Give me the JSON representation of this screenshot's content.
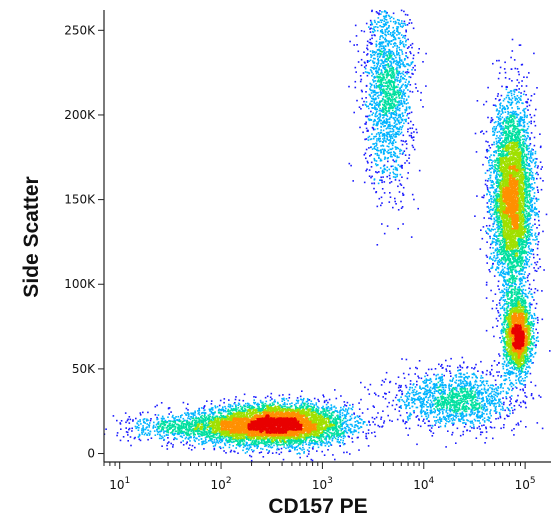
{
  "chart_data": {
    "type": "scatter",
    "subtype": "flow cytometry density dot plot",
    "xlabel": "CD157 PE",
    "ylabel": "Side Scatter",
    "x_scale": "log",
    "xlim": [
      7,
      180000
    ],
    "ylim": [
      -5000,
      262000
    ],
    "x_ticks": [
      {
        "value": 10,
        "label_base": "10",
        "label_exp": "1"
      },
      {
        "value": 100,
        "label_base": "10",
        "label_exp": "2"
      },
      {
        "value": 1000,
        "label_base": "10",
        "label_exp": "3"
      },
      {
        "value": 10000,
        "label_base": "10",
        "label_exp": "4"
      },
      {
        "value": 100000,
        "label_base": "10",
        "label_exp": "5"
      }
    ],
    "y_ticks": [
      {
        "value": 0,
        "label": "0"
      },
      {
        "value": 50000,
        "label": "50K"
      },
      {
        "value": 100000,
        "label": "100K"
      },
      {
        "value": 150000,
        "label": "150K"
      },
      {
        "value": 200000,
        "label": "200K"
      },
      {
        "value": 250000,
        "label": "250K"
      }
    ],
    "density_colors": [
      "#1c1cff",
      "#00b4ff",
      "#00e0a0",
      "#a0e000",
      "#ff9000",
      "#e80000"
    ],
    "populations": [
      {
        "x_center": 350,
        "x_spread_decades": 0.35,
        "y_center": 17000,
        "y_spread": 6000,
        "events": 6000
      },
      {
        "x_center": 60,
        "x_spread_decades": 0.35,
        "y_center": 15000,
        "y_spread": 4000,
        "events": 900
      },
      {
        "x_center": 4500,
        "x_spread_decades": 0.12,
        "y_center": 215000,
        "y_spread": 28000,
        "events": 1800
      },
      {
        "x_center": 75000,
        "x_spread_decades": 0.1,
        "y_center": 150000,
        "y_spread": 28000,
        "events": 5000
      },
      {
        "x_center": 85000,
        "x_spread_decades": 0.07,
        "y_center": 70000,
        "y_spread": 11000,
        "events": 2200
      },
      {
        "x_center": 20000,
        "x_spread_decades": 0.3,
        "y_center": 32000,
        "y_spread": 9000,
        "events": 1500
      }
    ]
  }
}
